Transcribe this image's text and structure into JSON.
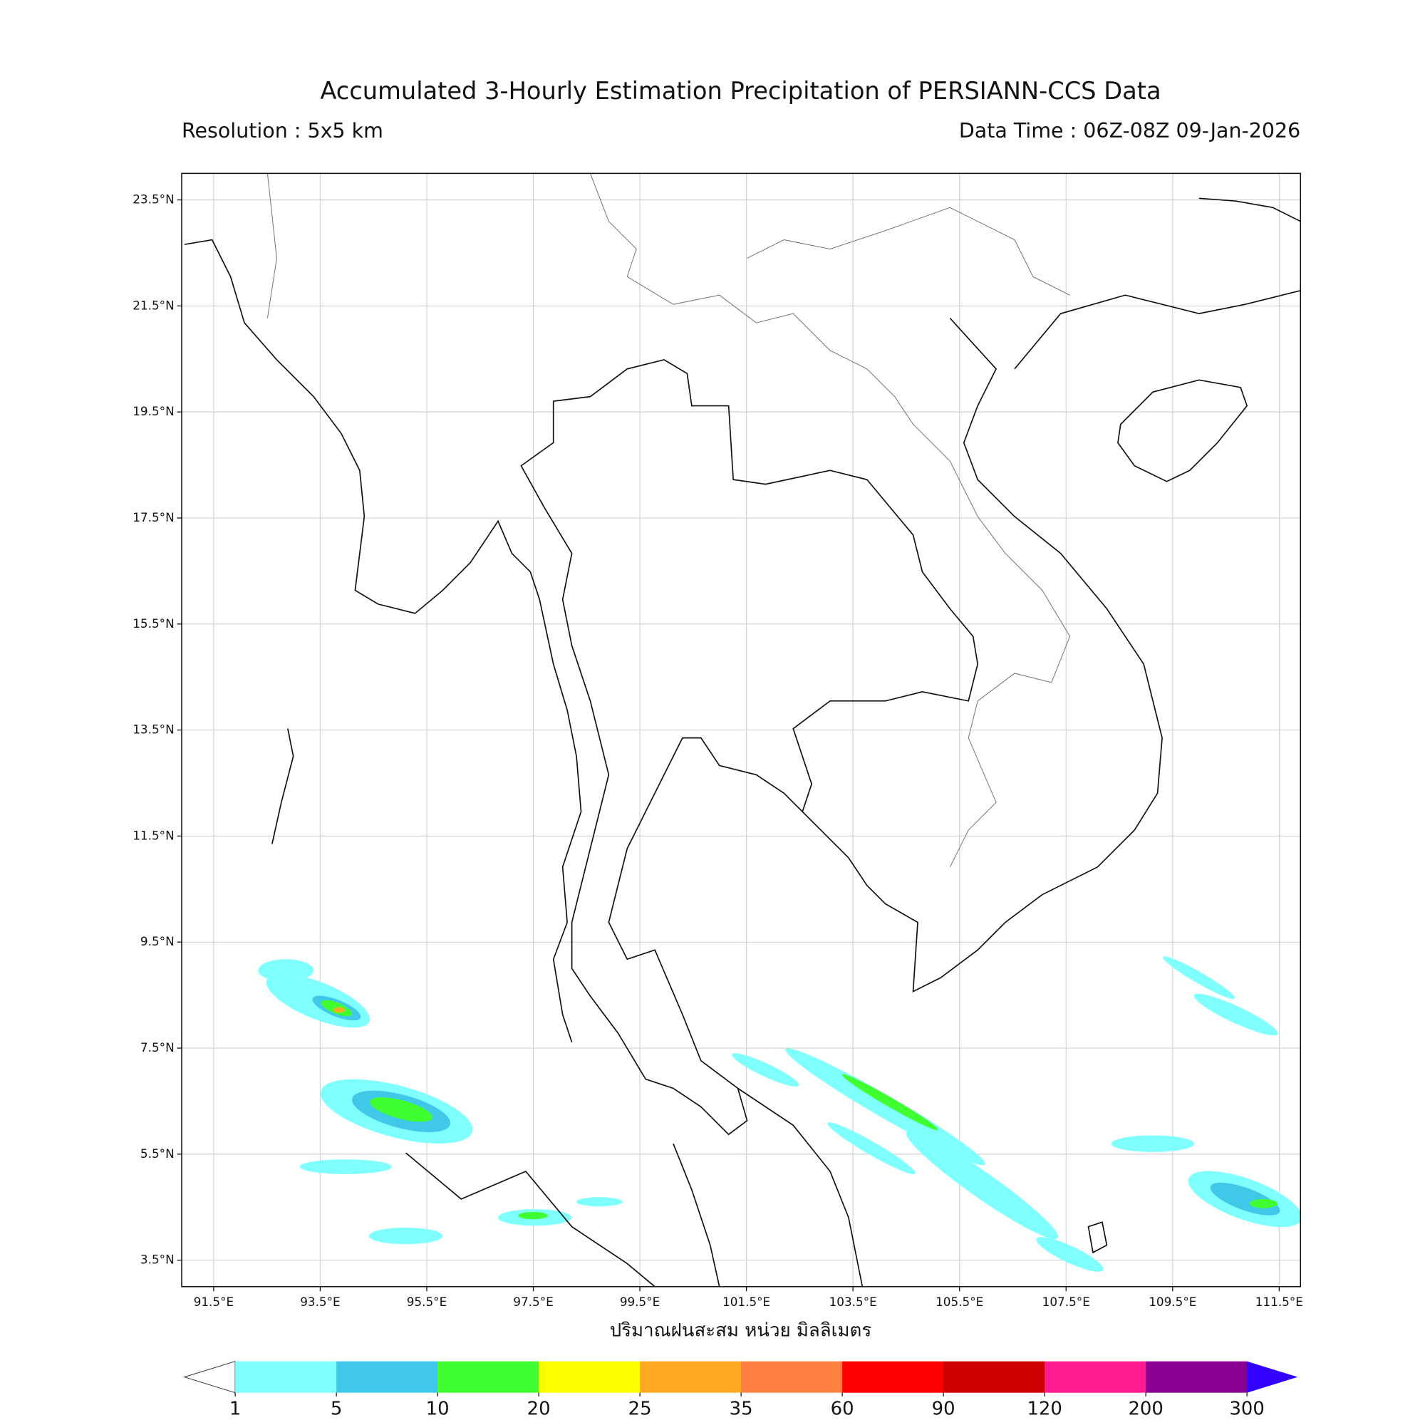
{
  "header": {
    "title": "Accumulated 3-Hourly Estimation Precipitation of PERSIANN-CCS Data",
    "resolution": "Resolution : 5x5 km",
    "data_time": "Data Time : 06Z-08Z 09-Jan-2026"
  },
  "map": {
    "lon_range": [
      90.9,
      111.9
    ],
    "lat_range": [
      3.0,
      24.0
    ],
    "lat_ticks": [
      {
        "value": 23.5,
        "label": "23.5°N"
      },
      {
        "value": 21.5,
        "label": "21.5°N"
      },
      {
        "value": 19.5,
        "label": "19.5°N"
      },
      {
        "value": 17.5,
        "label": "17.5°N"
      },
      {
        "value": 15.5,
        "label": "15.5°N"
      },
      {
        "value": 13.5,
        "label": "13.5°N"
      },
      {
        "value": 11.5,
        "label": "11.5°N"
      },
      {
        "value": 9.5,
        "label": "9.5°N"
      },
      {
        "value": 7.5,
        "label": "7.5°N"
      },
      {
        "value": 5.5,
        "label": "5.5°N"
      },
      {
        "value": 3.5,
        "label": "3.5°N"
      }
    ],
    "lon_ticks": [
      {
        "value": 91.5,
        "label": "91.5°E"
      },
      {
        "value": 93.5,
        "label": "93.5°E"
      },
      {
        "value": 95.5,
        "label": "95.5°E"
      },
      {
        "value": 97.5,
        "label": "97.5°E"
      },
      {
        "value": 99.5,
        "label": "99.5°E"
      },
      {
        "value": 101.5,
        "label": "101.5°E"
      },
      {
        "value": 103.5,
        "label": "103.5°E"
      },
      {
        "value": 105.5,
        "label": "105.5°E"
      },
      {
        "value": 107.5,
        "label": "107.5°E"
      },
      {
        "value": 109.5,
        "label": "109.5°E"
      },
      {
        "value": 111.5,
        "label": "111.5°E"
      }
    ],
    "xlabel": "ปริมาณฝนสะสม หน่วย มิลลิเมตร",
    "grid": true
  },
  "colorbar": {
    "levels": [
      1,
      5,
      10,
      20,
      25,
      35,
      60,
      90,
      120,
      200,
      300
    ],
    "colors": [
      "#80ffff",
      "#40c8e8",
      "#40ff30",
      "#ffff00",
      "#ffaa22",
      "#ff8040",
      "#ff0000",
      "#cc0000",
      "#ff1a90",
      "#8a0090"
    ],
    "under_color": "#ffffff",
    "over_color": "#3300ff"
  }
}
